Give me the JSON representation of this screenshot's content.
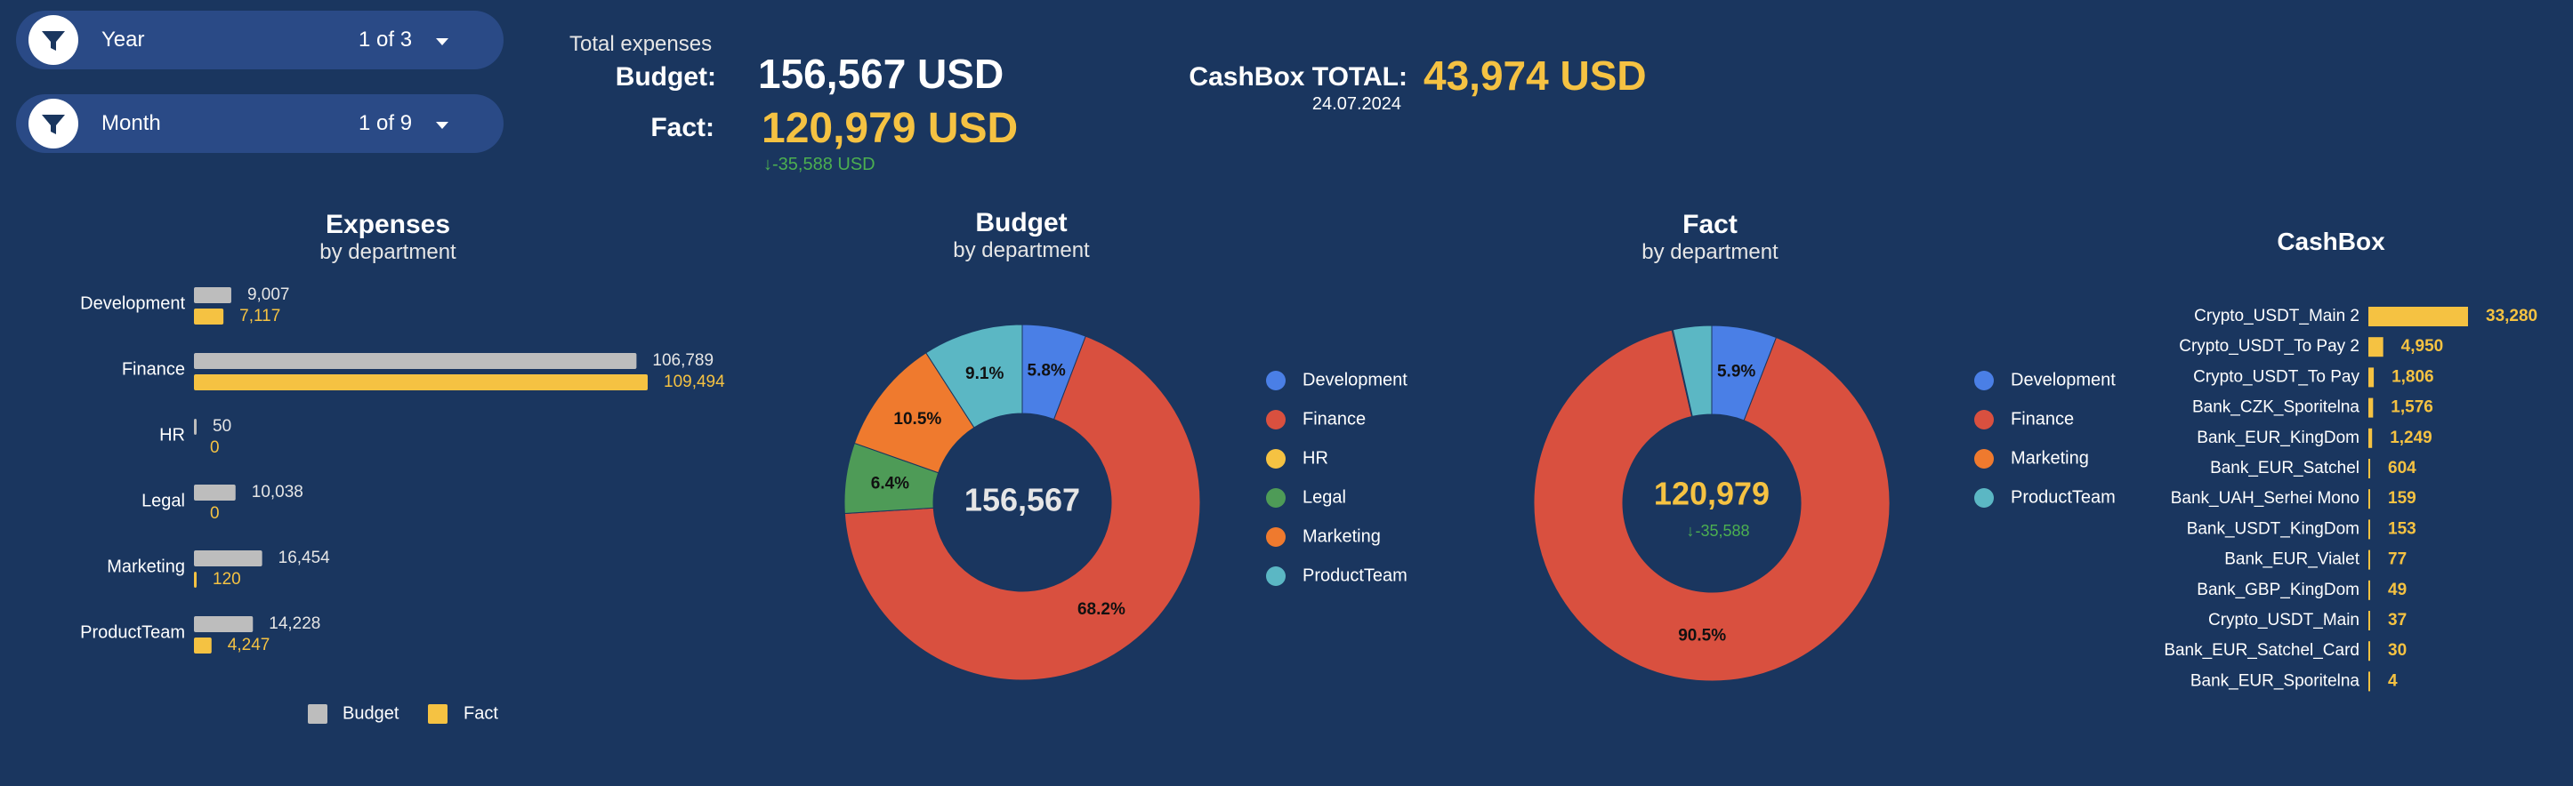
{
  "filters": [
    {
      "label": "Year",
      "value": "1 of 3"
    },
    {
      "label": "Month",
      "value": "1 of 9"
    }
  ],
  "kpi": {
    "caption": "Total expenses",
    "budget_label": "Budget:",
    "budget_value": "156,567 USD",
    "fact_label": "Fact:",
    "fact_value": "120,979 USD",
    "fact_delta": "-35,588 USD",
    "cashbox_label": "CashBox TOTAL:",
    "cashbox_value": "43,974 USD",
    "cashbox_date": "24.07.2024"
  },
  "colors": {
    "budget": "#bdbdbd",
    "fact": "#f5c242",
    "Development": "#4a7fe6",
    "Finance": "#d9503f",
    "HR": "#f5c242",
    "Legal": "#4e9b57",
    "Marketing": "#ef7a2e",
    "ProductTeam": "#5bb7c4"
  },
  "chart_data": [
    {
      "id": "expenses",
      "type": "bar",
      "orientation": "horizontal",
      "title": "Expenses",
      "subtitle": "by department",
      "categories": [
        "Development",
        "Finance",
        "HR",
        "Legal",
        "Marketing",
        "ProductTeam"
      ],
      "series": [
        {
          "name": "Budget",
          "values": [
            9007,
            106789,
            50,
            10038,
            16454,
            14228
          ],
          "labels": [
            "9,007",
            "106,789",
            "50",
            "10,038",
            "16,454",
            "14,228"
          ]
        },
        {
          "name": "Fact",
          "values": [
            7117,
            109494,
            0,
            0,
            120,
            4247
          ],
          "labels": [
            "7,117",
            "109,494",
            "0",
            "0",
            "120",
            "4,247"
          ]
        }
      ],
      "legend": "bottom"
    },
    {
      "id": "budget",
      "type": "pie",
      "donut": true,
      "title": "Budget",
      "subtitle": "by department",
      "center_value": "156,567",
      "slices": [
        {
          "name": "Development",
          "value": 5.8,
          "label": "5.8%"
        },
        {
          "name": "Finance",
          "value": 68.2,
          "label": "68.2%"
        },
        {
          "name": "HR",
          "value": 0.0,
          "label": ""
        },
        {
          "name": "Legal",
          "value": 6.4,
          "label": "6.4%"
        },
        {
          "name": "Marketing",
          "value": 10.5,
          "label": "10.5%"
        },
        {
          "name": "ProductTeam",
          "value": 9.1,
          "label": "9.1%"
        }
      ],
      "legend": "right"
    },
    {
      "id": "fact",
      "type": "pie",
      "donut": true,
      "title": "Fact",
      "subtitle": "by department",
      "center_value": "120,979",
      "center_delta": "-35,588",
      "slices": [
        {
          "name": "Development",
          "value": 5.9,
          "label": "5.9%"
        },
        {
          "name": "Finance",
          "value": 90.5,
          "label": "90.5%"
        },
        {
          "name": "Marketing",
          "value": 0.1,
          "label": ""
        },
        {
          "name": "ProductTeam",
          "value": 3.5,
          "label": ""
        }
      ],
      "legend": "right"
    },
    {
      "id": "cashbox",
      "type": "bar",
      "orientation": "horizontal",
      "title": "CashBox",
      "categories": [
        "Crypto_USDT_Main 2",
        "Crypto_USDT_To Pay 2",
        "Crypto_USDT_To Pay",
        "Bank_CZK_Sporitelna",
        "Bank_EUR_KingDom",
        "Bank_EUR_Satchel",
        "Bank_UAH_Serhei Mono",
        "Bank_USDT_KingDom",
        "Bank_EUR_Vialet",
        "Bank_GBP_KingDom",
        "Crypto_USDT_Main",
        "Bank_EUR_Satchel_Card",
        "Bank_EUR_Sporitelna"
      ],
      "values": [
        33280,
        4950,
        1806,
        1576,
        1249,
        604,
        159,
        153,
        77,
        49,
        37,
        30,
        4
      ],
      "labels": [
        "33,280",
        "4,950",
        "1,806",
        "1,576",
        "1,249",
        "604",
        "159",
        "153",
        "77",
        "49",
        "37",
        "30",
        "4"
      ]
    }
  ]
}
